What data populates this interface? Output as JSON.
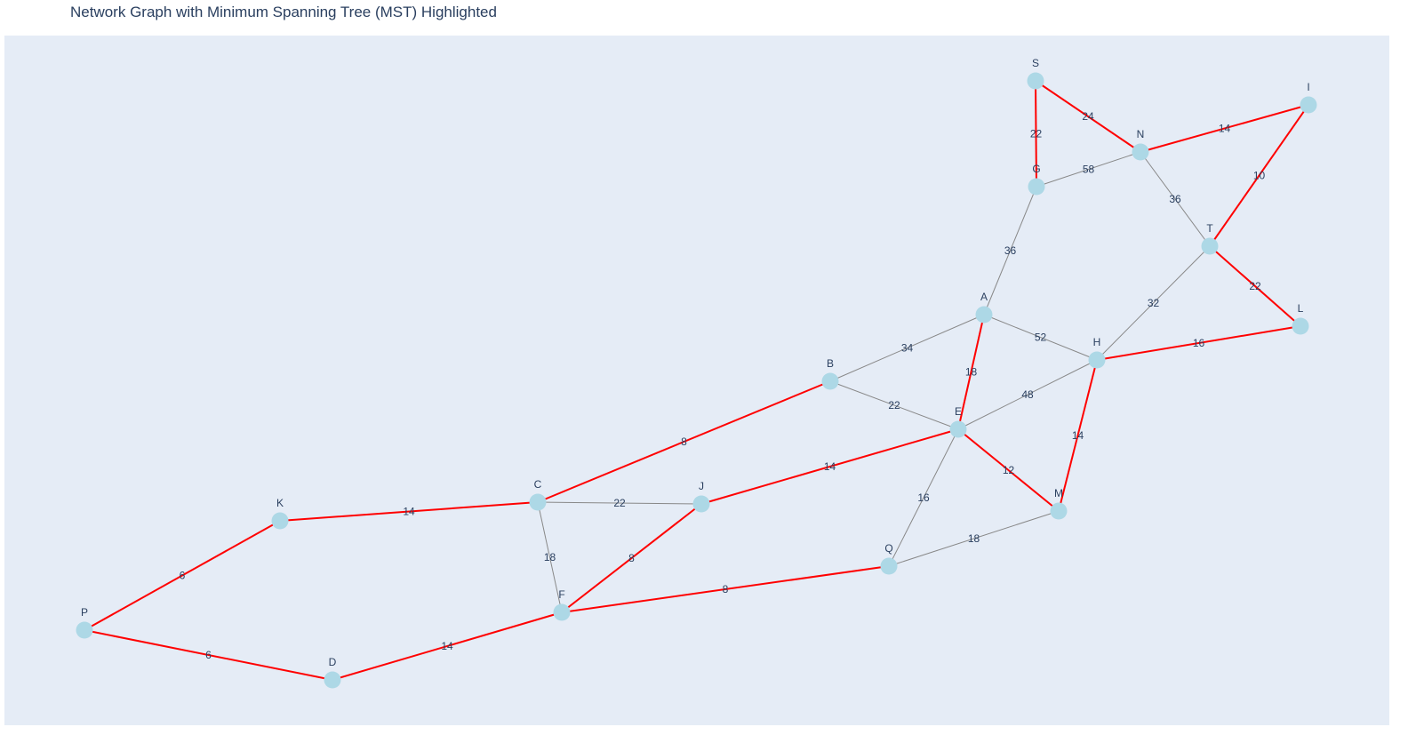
{
  "title": "Network Graph with Minimum Spanning Tree (MST) Highlighted",
  "colors": {
    "plot_background": "#e5ecf6",
    "edge": "#888888",
    "mst_edge": "#ff0000",
    "node": "#add8e6",
    "text": "#2a3f5f"
  },
  "nodes": [
    "S",
    "I",
    "N",
    "G",
    "T",
    "A",
    "L",
    "H",
    "B",
    "E",
    "C",
    "J",
    "K",
    "M",
    "Q",
    "F",
    "P",
    "D"
  ],
  "edges": [
    {
      "from": "S",
      "to": "G",
      "weight": 22,
      "mst": true
    },
    {
      "from": "S",
      "to": "N",
      "weight": 24,
      "mst": true
    },
    {
      "from": "N",
      "to": "I",
      "weight": 14,
      "mst": true
    },
    {
      "from": "I",
      "to": "T",
      "weight": 10,
      "mst": true
    },
    {
      "from": "G",
      "to": "N",
      "weight": 58,
      "mst": false
    },
    {
      "from": "N",
      "to": "T",
      "weight": 36,
      "mst": false
    },
    {
      "from": "G",
      "to": "A",
      "weight": 36,
      "mst": false
    },
    {
      "from": "T",
      "to": "L",
      "weight": 22,
      "mst": true
    },
    {
      "from": "T",
      "to": "H",
      "weight": 32,
      "mst": false
    },
    {
      "from": "A",
      "to": "H",
      "weight": 52,
      "mst": false
    },
    {
      "from": "H",
      "to": "L",
      "weight": 16,
      "mst": true
    },
    {
      "from": "A",
      "to": "B",
      "weight": 34,
      "mst": false
    },
    {
      "from": "A",
      "to": "E",
      "weight": 18,
      "mst": true
    },
    {
      "from": "E",
      "to": "H",
      "weight": 48,
      "mst": false
    },
    {
      "from": "B",
      "to": "E",
      "weight": 22,
      "mst": false
    },
    {
      "from": "H",
      "to": "M",
      "weight": 14,
      "mst": true
    },
    {
      "from": "B",
      "to": "C",
      "weight": 8,
      "mst": true
    },
    {
      "from": "J",
      "to": "E",
      "weight": 14,
      "mst": true
    },
    {
      "from": "E",
      "to": "M",
      "weight": 12,
      "mst": true
    },
    {
      "from": "C",
      "to": "J",
      "weight": 22,
      "mst": false
    },
    {
      "from": "K",
      "to": "C",
      "weight": 14,
      "mst": true
    },
    {
      "from": "E",
      "to": "Q",
      "weight": 16,
      "mst": false
    },
    {
      "from": "Q",
      "to": "M",
      "weight": 18,
      "mst": false
    },
    {
      "from": "C",
      "to": "F",
      "weight": 18,
      "mst": false
    },
    {
      "from": "J",
      "to": "F",
      "weight": 8,
      "mst": true
    },
    {
      "from": "P",
      "to": "K",
      "weight": 6,
      "mst": true
    },
    {
      "from": "F",
      "to": "Q",
      "weight": 8,
      "mst": true
    },
    {
      "from": "D",
      "to": "F",
      "weight": 14,
      "mst": true
    },
    {
      "from": "P",
      "to": "D",
      "weight": 6,
      "mst": true
    }
  ]
}
